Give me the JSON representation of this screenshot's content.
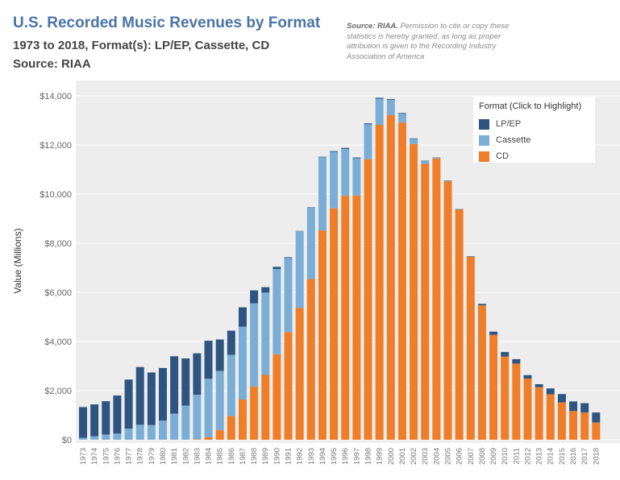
{
  "header": {
    "title": "U.S. Recorded Music Revenues by Format",
    "subtitle": "1973 to 2018, Format(s): LP/EP, Cassette, CD",
    "source_line": "Source: RIAA",
    "note_bold": "Source: RIAA.",
    "note_text": " Permission to cite or copy these statistics is hereby granted, as long as proper attribution is given to the Recording Industry Association of America"
  },
  "legend": {
    "title": "Format (Click to Highlight)",
    "items": [
      {
        "label": "LP/EP",
        "color": "#2e5581"
      },
      {
        "label": "Cassette",
        "color": "#7aaed6"
      },
      {
        "label": "CD",
        "color": "#f07d28"
      }
    ]
  },
  "chart_data": {
    "type": "bar",
    "stacked": true,
    "ylabel": "Value (Millions)",
    "ylim": [
      0,
      14000
    ],
    "yticks": [
      0,
      2000,
      4000,
      6000,
      8000,
      10000,
      12000,
      14000
    ],
    "ytick_labels": [
      "$0",
      "$2,000",
      "$4,000",
      "$6,000",
      "$8,000",
      "$10,000",
      "$12,000",
      "$14,000"
    ],
    "grid": true,
    "legend_position": "top-right",
    "categories": [
      "1973",
      "1974",
      "1975",
      "1976",
      "1977",
      "1978",
      "1979",
      "1980",
      "1981",
      "1982",
      "1983",
      "1984",
      "1985",
      "1986",
      "1987",
      "1988",
      "1989",
      "1990",
      "1991",
      "1992",
      "1993",
      "1994",
      "1995",
      "1996",
      "1997",
      "1998",
      "1999",
      "2000",
      "2001",
      "2002",
      "2003",
      "2004",
      "2005",
      "2006",
      "2007",
      "2008",
      "2009",
      "2010",
      "2011",
      "2012",
      "2013",
      "2014",
      "2015",
      "2016",
      "2017",
      "2018"
    ],
    "series": [
      {
        "name": "CD",
        "values": [
          0,
          0,
          0,
          0,
          0,
          0,
          0,
          0,
          0,
          0,
          20,
          100,
          390,
          960,
          1640,
          2160,
          2640,
          3480,
          4380,
          5370,
          6540,
          8520,
          9420,
          9930,
          9940,
          11420,
          12820,
          13210,
          12910,
          12040,
          11230,
          11450,
          10520,
          9370,
          7450,
          5470,
          4270,
          3390,
          3100,
          2490,
          2140,
          1850,
          1520,
          1170,
          1110,
          700
        ],
        "color": "#f07d28"
      },
      {
        "name": "Cassette",
        "values": [
          80,
          140,
          210,
          250,
          450,
          610,
          600,
          780,
          1060,
          1390,
          1810,
          2380,
          2410,
          2500,
          2960,
          3390,
          3350,
          3470,
          3020,
          3120,
          2920,
          2980,
          2300,
          1910,
          1520,
          1420,
          1060,
          630,
          360,
          210,
          110,
          20,
          10,
          0,
          0,
          0,
          0,
          0,
          0,
          0,
          0,
          0,
          0,
          0,
          0,
          0
        ],
        "color": "#7aaed6"
      },
      {
        "name": "LP/EP",
        "values": [
          1250,
          1300,
          1360,
          1550,
          2000,
          2350,
          2140,
          2140,
          2340,
          1920,
          1690,
          1550,
          1280,
          980,
          790,
          530,
          220,
          90,
          30,
          10,
          10,
          20,
          30,
          40,
          30,
          40,
          40,
          30,
          30,
          20,
          20,
          20,
          20,
          20,
          20,
          60,
          130,
          180,
          180,
          140,
          120,
          240,
          340,
          390,
          380,
          410
        ],
        "color": "#2e5581"
      }
    ]
  }
}
